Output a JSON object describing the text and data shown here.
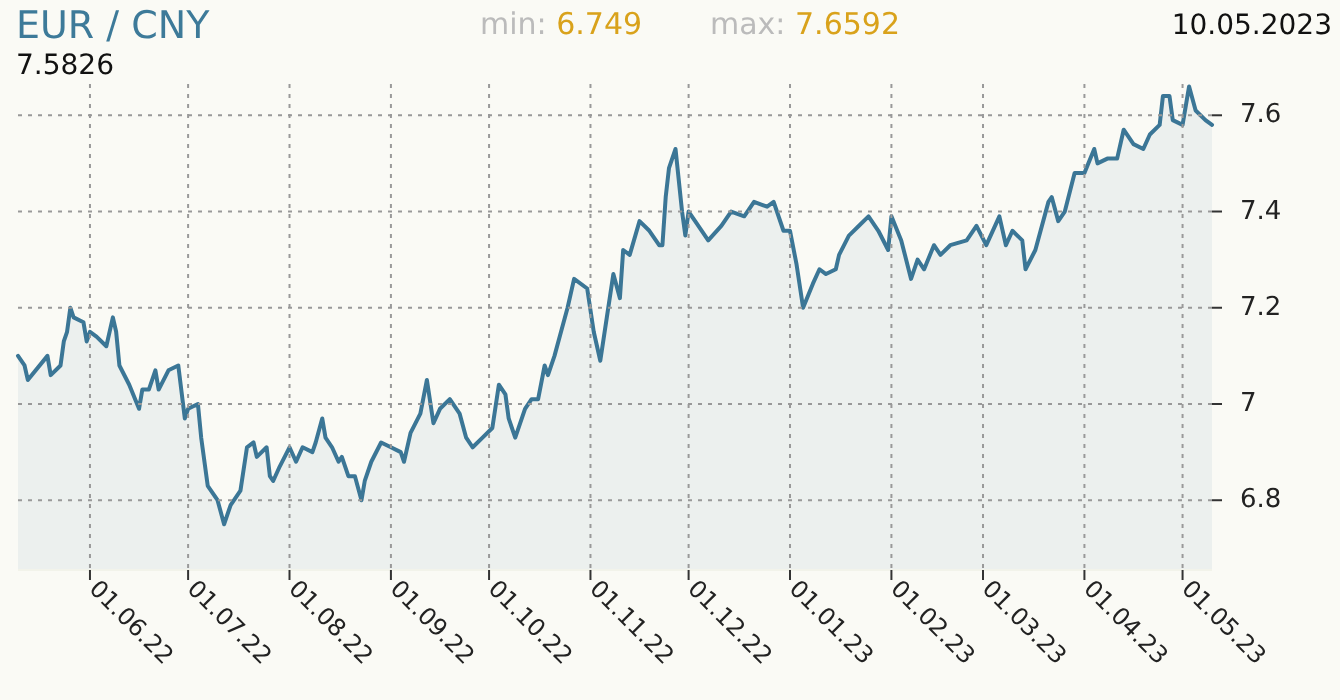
{
  "chart_data": {
    "type": "area",
    "title": "EUR / CNY",
    "annotations": [
      "min: 6.749",
      "max: 7.6592",
      "10.05.2023",
      "7.5826"
    ],
    "xlim": [
      "2022-05-10",
      "2023-05-10"
    ],
    "xticks": [
      {
        "value": "2022-06-01",
        "label": "01.06.22"
      },
      {
        "value": "2022-07-01",
        "label": "01.07.22"
      },
      {
        "value": "2022-08-01",
        "label": "01.08.22"
      },
      {
        "value": "2022-09-01",
        "label": "01.09.22"
      },
      {
        "value": "2022-10-01",
        "label": "01.10.22"
      },
      {
        "value": "2022-11-01",
        "label": "01.11.22"
      },
      {
        "value": "2022-12-01",
        "label": "01.12.22"
      },
      {
        "value": "2023-01-01",
        "label": "01.01.23"
      },
      {
        "value": "2023-02-01",
        "label": "01.02.23"
      },
      {
        "value": "2023-03-01",
        "label": "01.03.23"
      },
      {
        "value": "2023-04-01",
        "label": "01.04.23"
      },
      {
        "value": "2023-05-01",
        "label": "01.05.23"
      }
    ],
    "ylim": [
      6.655,
      7.665
    ],
    "yticks": [
      6.8,
      7,
      7.2,
      7.4,
      7.6
    ],
    "grid": true,
    "x": [
      "2022-05-10",
      "2022-05-12",
      "2022-05-13",
      "2022-05-19",
      "2022-05-20",
      "2022-05-23",
      "2022-05-24",
      "2022-05-25",
      "2022-05-26",
      "2022-05-27",
      "2022-05-30",
      "2022-05-31",
      "2022-06-01",
      "2022-06-03",
      "2022-06-06",
      "2022-06-08",
      "2022-06-09",
      "2022-06-10",
      "2022-06-13",
      "2022-06-16",
      "2022-06-17",
      "2022-06-19",
      "2022-06-21",
      "2022-06-22",
      "2022-06-25",
      "2022-06-28",
      "2022-06-30",
      "2022-07-01",
      "2022-07-04",
      "2022-07-05",
      "2022-07-07",
      "2022-07-10",
      "2022-07-12",
      "2022-07-14",
      "2022-07-17",
      "2022-07-19",
      "2022-07-21",
      "2022-07-22",
      "2022-07-25",
      "2022-07-26",
      "2022-07-27",
      "2022-07-29",
      "2022-08-01",
      "2022-08-03",
      "2022-08-05",
      "2022-08-08",
      "2022-08-09",
      "2022-08-11",
      "2022-08-12",
      "2022-08-14",
      "2022-08-16",
      "2022-08-17",
      "2022-08-19",
      "2022-08-21",
      "2022-08-23",
      "2022-08-24",
      "2022-08-26",
      "2022-08-29",
      "2022-09-01",
      "2022-09-04",
      "2022-09-05",
      "2022-09-07",
      "2022-09-10",
      "2022-09-12",
      "2022-09-14",
      "2022-09-16",
      "2022-09-19",
      "2022-09-22",
      "2022-09-24",
      "2022-09-26",
      "2022-09-29",
      "2022-10-02",
      "2022-10-04",
      "2022-10-06",
      "2022-10-07",
      "2022-10-09",
      "2022-10-12",
      "2022-10-14",
      "2022-10-16",
      "2022-10-18",
      "2022-10-19",
      "2022-10-21",
      "2022-10-23",
      "2022-10-25",
      "2022-10-27",
      "2022-10-31",
      "2022-11-02",
      "2022-11-04",
      "2022-11-06",
      "2022-11-08",
      "2022-11-10",
      "2022-11-11",
      "2022-11-13",
      "2022-11-16",
      "2022-11-19",
      "2022-11-22",
      "2022-11-23",
      "2022-11-24",
      "2022-11-25",
      "2022-11-27",
      "2022-11-29",
      "2022-11-30",
      "2022-12-01",
      "2022-12-03",
      "2022-12-07",
      "2022-12-11",
      "2022-12-14",
      "2022-12-18",
      "2022-12-21",
      "2022-12-25",
      "2022-12-27",
      "2022-12-28",
      "2022-12-30",
      "2023-01-01",
      "2023-01-03",
      "2023-01-05",
      "2023-01-08",
      "2023-01-10",
      "2023-01-12",
      "2023-01-15",
      "2023-01-16",
      "2023-01-19",
      "2023-01-22",
      "2023-01-25",
      "2023-01-28",
      "2023-01-31",
      "2023-02-01",
      "2023-02-04",
      "2023-02-07",
      "2023-02-09",
      "2023-02-11",
      "2023-02-14",
      "2023-02-16",
      "2023-02-19",
      "2023-02-24",
      "2023-02-27",
      "2023-03-02",
      "2023-03-06",
      "2023-03-08",
      "2023-03-10",
      "2023-03-13",
      "2023-03-14",
      "2023-03-17",
      "2023-03-21",
      "2023-03-22",
      "2023-03-24",
      "2023-03-26",
      "2023-03-29",
      "2023-04-01",
      "2023-04-04",
      "2023-04-05",
      "2023-04-08",
      "2023-04-11",
      "2023-04-13",
      "2023-04-16",
      "2023-04-19",
      "2023-04-21",
      "2023-04-24",
      "2023-04-25",
      "2023-04-27",
      "2023-04-28",
      "2023-05-01",
      "2023-05-03",
      "2023-05-05",
      "2023-05-08",
      "2023-05-10"
    ],
    "series": [
      {
        "color": "#3b7696",
        "values": [
          7.1,
          7.08,
          7.05,
          7.1,
          7.06,
          7.08,
          7.13,
          7.15,
          7.2,
          7.18,
          7.17,
          7.13,
          7.15,
          7.14,
          7.12,
          7.18,
          7.15,
          7.08,
          7.04,
          6.99,
          7.03,
          7.03,
          7.07,
          7.03,
          7.07,
          7.08,
          6.97,
          6.99,
          7.0,
          6.93,
          6.83,
          6.8,
          6.75,
          6.79,
          6.82,
          6.91,
          6.92,
          6.89,
          6.91,
          6.85,
          6.84,
          6.87,
          6.91,
          6.88,
          6.91,
          6.9,
          6.92,
          6.97,
          6.93,
          6.91,
          6.88,
          6.89,
          6.85,
          6.85,
          6.8,
          6.84,
          6.88,
          6.92,
          6.91,
          6.9,
          6.88,
          6.94,
          6.98,
          7.05,
          6.96,
          6.99,
          7.01,
          6.98,
          6.93,
          6.91,
          6.93,
          6.95,
          7.04,
          7.02,
          6.97,
          6.93,
          6.99,
          7.01,
          7.01,
          7.08,
          7.06,
          7.1,
          7.15,
          7.2,
          7.26,
          7.24,
          7.15,
          7.09,
          7.18,
          7.27,
          7.22,
          7.32,
          7.31,
          7.38,
          7.36,
          7.33,
          7.33,
          7.43,
          7.49,
          7.53,
          7.4,
          7.35,
          7.4,
          7.38,
          7.34,
          7.37,
          7.4,
          7.39,
          7.42,
          7.41,
          7.42,
          7.4,
          7.36,
          7.36,
          7.29,
          7.2,
          7.25,
          7.28,
          7.27,
          7.28,
          7.31,
          7.35,
          7.37,
          7.39,
          7.36,
          7.32,
          7.39,
          7.34,
          7.26,
          7.3,
          7.28,
          7.33,
          7.31,
          7.33,
          7.34,
          7.37,
          7.33,
          7.39,
          7.33,
          7.36,
          7.34,
          7.28,
          7.32,
          7.42,
          7.43,
          7.38,
          7.4,
          7.48,
          7.48,
          7.53,
          7.5,
          7.51,
          7.51,
          7.57,
          7.54,
          7.53,
          7.56,
          7.58,
          7.64,
          7.64,
          7.59,
          7.58,
          7.66,
          7.61,
          7.59,
          7.58
        ]
      }
    ]
  }
}
